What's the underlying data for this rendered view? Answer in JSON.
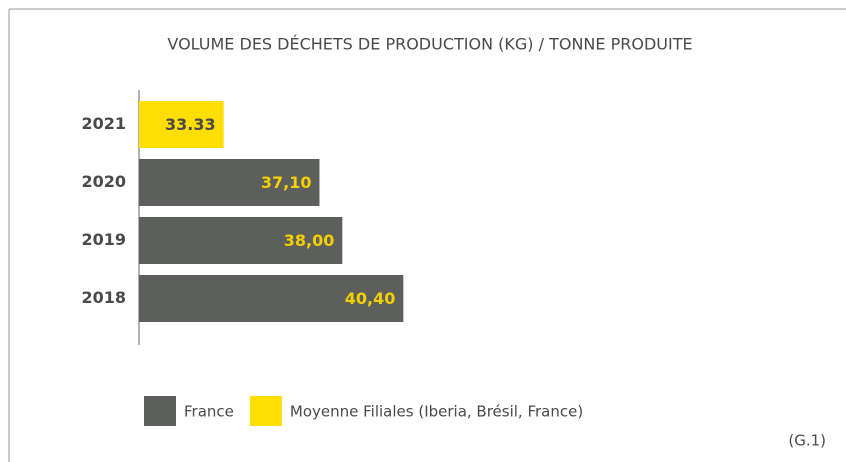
{
  "chart_data": {
    "type": "hbar",
    "title": "VOLUME DES DÉCHETS DE PRODUCTION (KG) / TONNE PRODUITE",
    "categories": [
      "2021",
      "2020",
      "2019",
      "2018"
    ],
    "series": [
      {
        "name": "France",
        "color": "#5c5f5c",
        "label_color": "#f5cf00",
        "values": [
          null,
          37.1,
          38.0,
          40.4
        ],
        "value_labels": [
          null,
          "37,10",
          "38,00",
          "40,40"
        ]
      },
      {
        "name": "Moyenne Filiales (Iberia, Brésil, France)",
        "color": "#ffde00",
        "label_color": "#4a4a4a",
        "values": [
          33.33,
          null,
          null,
          null
        ],
        "value_labels": [
          "33.33",
          null,
          null,
          null
        ]
      }
    ],
    "xlim": [
      30,
      42
    ],
    "note": "(G.1)"
  }
}
